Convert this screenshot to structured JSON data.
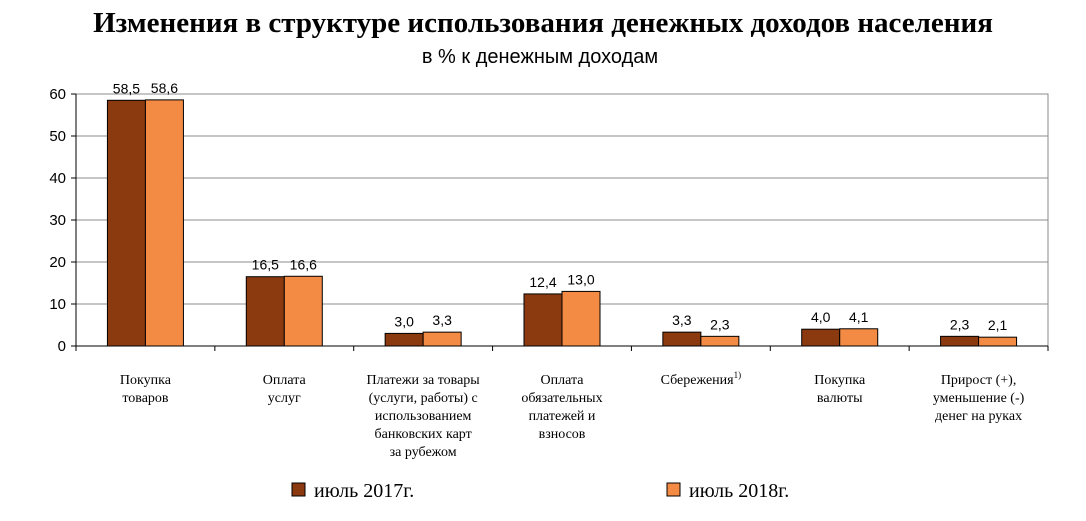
{
  "chart_data": {
    "type": "bar",
    "title": "Изменения в структуре использования денежных доходов населения",
    "subtitle": "в % к денежным доходам",
    "categories": [
      [
        "Покупка",
        "товаров"
      ],
      [
        "Оплата",
        "услуг"
      ],
      [
        "Платежи за товары",
        "(услуги, работы) с",
        "использованием",
        "банковских карт",
        "за рубежом"
      ],
      [
        "Оплата",
        "обязательных",
        "платежей и",
        "взносов"
      ],
      [
        "Сбережения"
      ],
      [
        "Покупка",
        "валюты"
      ],
      [
        "Прирост (+),",
        "уменьшение (-)",
        "денег на руках"
      ]
    ],
    "category_footnotes": [
      "",
      "",
      "",
      "",
      "1)",
      "",
      ""
    ],
    "series": [
      {
        "name": "июль 2017г.",
        "color": "#8B3A0F",
        "values": [
          58.5,
          16.5,
          3.0,
          12.4,
          3.3,
          4.0,
          2.3
        ],
        "labels": [
          "58,5",
          "16,5",
          "3,0",
          "12,4",
          "3,3",
          "4,0",
          "2,3"
        ]
      },
      {
        "name": "июль 2018г.",
        "color": "#F38B45",
        "values": [
          58.6,
          16.6,
          3.3,
          13.0,
          2.3,
          4.1,
          2.1
        ],
        "labels": [
          "58,6",
          "16,6",
          "3,3",
          "13,0",
          "2,3",
          "4,1",
          "2,1"
        ]
      }
    ],
    "yticks": [
      "0",
      "10",
      "20",
      "30",
      "40",
      "50",
      "60"
    ],
    "ylim": [
      0,
      60
    ],
    "grid": true,
    "legend_position": "bottom"
  }
}
